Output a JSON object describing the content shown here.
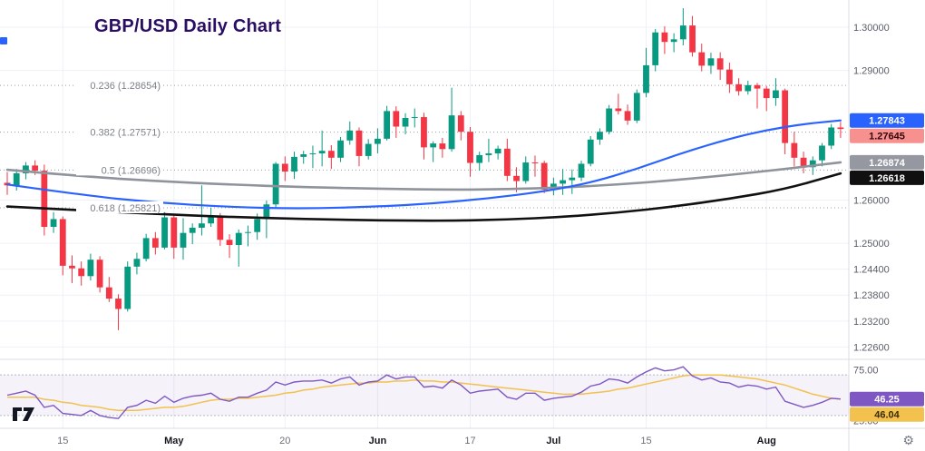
{
  "title": "GBP/USD Daily Chart",
  "colors": {
    "up_candle": "#089981",
    "down_candle": "#f23645",
    "ma_blue": "#2962ff",
    "ma_gray": "#8f939c",
    "ma_black": "#111111",
    "rsi_line": "#7e57c2",
    "rsi_ma_line": "#f2c14e",
    "fib_line": "#9b9ea6",
    "fib_text": "#7d8089",
    "grid": "#eef1f6",
    "separator": "#d9dce3",
    "band_fill": "rgba(126,87,194,0.08)",
    "title_text": "#2a0e63"
  },
  "price_axis": {
    "labels": [
      "1.30000",
      "1.29000",
      "1.26000",
      "1.25000",
      "1.24400",
      "1.23800",
      "1.23200",
      "1.22600"
    ],
    "badges": [
      {
        "text": "1.27843",
        "price": 1.27843,
        "bg": "#2962ff",
        "fg": "#ffffff",
        "name": "ma-blue-price-badge"
      },
      {
        "text": "1.27645",
        "price": 1.27645,
        "bg": "#f7918f",
        "fg": "#33060a",
        "name": "last-price-badge"
      },
      {
        "text": "1.26874",
        "price": 1.26874,
        "bg": "#9598a1",
        "fg": "#ffffff",
        "name": "ma-gray-price-badge"
      },
      {
        "text": "1.26618",
        "price": 1.26618,
        "bg": "#101010",
        "fg": "#ffffff",
        "name": "ma-black-price-badge"
      }
    ]
  },
  "rsi_axis": {
    "labels": [
      {
        "text": "75.00",
        "value": 75
      },
      {
        "text": "25.00",
        "value": 25
      }
    ],
    "badges": [
      {
        "text": "46.25",
        "value": 46.25,
        "bg": "#7e57c2",
        "fg": "#ffffff",
        "name": "rsi-value-badge"
      },
      {
        "text": "46.04",
        "value": 46.04,
        "bg": "#f2c14e",
        "fg": "#3a2b00",
        "name": "rsi-ma-value-badge"
      }
    ]
  },
  "time_axis": {
    "ticks": [
      {
        "label": "15",
        "index": 6,
        "month": false
      },
      {
        "label": "May",
        "index": 18,
        "month": true
      },
      {
        "label": "20",
        "index": 30,
        "month": false
      },
      {
        "label": "Jun",
        "index": 40,
        "month": true
      },
      {
        "label": "17",
        "index": 50,
        "month": false
      },
      {
        "label": "Jul",
        "index": 59,
        "month": true
      },
      {
        "label": "15",
        "index": 69,
        "month": false
      },
      {
        "label": "Aug",
        "index": 82,
        "month": true
      }
    ]
  },
  "chart_data": {
    "type": "candlestick",
    "pair": "GBP/USD",
    "interval": "Daily",
    "title": "GBP/USD Daily Chart",
    "price_range_visible": [
      1.226,
      1.3063
    ],
    "last_close": 1.27645,
    "fib_levels": [
      {
        "label": "0.236 (1.28654)",
        "price": 1.28654
      },
      {
        "label": "0.382 (1.27571)",
        "price": 1.27571
      },
      {
        "label": "0.5 (1.26696)",
        "price": 1.26696
      },
      {
        "label": "0.618 (1.25821)",
        "price": 1.25821
      }
    ],
    "candles": [
      [
        1.264,
        1.2665,
        1.2612,
        1.2634
      ],
      [
        1.2634,
        1.2672,
        1.2622,
        1.2662
      ],
      [
        1.2662,
        1.2688,
        1.2648,
        1.268
      ],
      [
        1.268,
        1.2692,
        1.2658,
        1.2668
      ],
      [
        1.2668,
        1.2682,
        1.2518,
        1.2538
      ],
      [
        1.2538,
        1.2572,
        1.2524,
        1.2556
      ],
      [
        1.2556,
        1.2562,
        1.2426,
        1.2448
      ],
      [
        1.2448,
        1.2472,
        1.2408,
        1.2442
      ],
      [
        1.2442,
        1.2458,
        1.2402,
        1.2424
      ],
      [
        1.2424,
        1.2476,
        1.2414,
        1.2462
      ],
      [
        1.2462,
        1.247,
        1.2386,
        1.2398
      ],
      [
        1.2398,
        1.2422,
        1.2364,
        1.2372
      ],
      [
        1.2372,
        1.2382,
        1.2299,
        1.2348
      ],
      [
        1.2348,
        1.2458,
        1.2342,
        1.2446
      ],
      [
        1.2446,
        1.2478,
        1.2428,
        1.2464
      ],
      [
        1.2464,
        1.2522,
        1.2458,
        1.2512
      ],
      [
        1.2512,
        1.2526,
        1.2474,
        1.249
      ],
      [
        1.249,
        1.2572,
        1.2486,
        1.256
      ],
      [
        1.256,
        1.2568,
        1.2464,
        1.249
      ],
      [
        1.249,
        1.2558,
        1.2462,
        1.2524
      ],
      [
        1.2524,
        1.2546,
        1.2498,
        1.2536
      ],
      [
        1.2536,
        1.2634,
        1.2518,
        1.2546
      ],
      [
        1.2546,
        1.2582,
        1.2538,
        1.2564
      ],
      [
        1.2564,
        1.257,
        1.2494,
        1.2508
      ],
      [
        1.2508,
        1.2521,
        1.2466,
        1.2496
      ],
      [
        1.2496,
        1.2532,
        1.2446,
        1.2524
      ],
      [
        1.2524,
        1.2541,
        1.2493,
        1.2526
      ],
      [
        1.2526,
        1.2569,
        1.2508,
        1.2556
      ],
      [
        1.2556,
        1.2599,
        1.2512,
        1.259
      ],
      [
        1.259,
        1.2688,
        1.2583,
        1.2684
      ],
      [
        1.2684,
        1.2701,
        1.2644,
        1.2666
      ],
      [
        1.2666,
        1.2712,
        1.2649,
        1.27
      ],
      [
        1.27,
        1.2714,
        1.2684,
        1.2706
      ],
      [
        1.2706,
        1.2726,
        1.2674,
        1.2708
      ],
      [
        1.2708,
        1.2761,
        1.2678,
        1.2714
      ],
      [
        1.2714,
        1.2727,
        1.2672,
        1.2698
      ],
      [
        1.2698,
        1.2746,
        1.2688,
        1.2738
      ],
      [
        1.2738,
        1.2782,
        1.2728,
        1.2761
      ],
      [
        1.2761,
        1.2768,
        1.2678,
        1.2702
      ],
      [
        1.2702,
        1.2741,
        1.2694,
        1.273
      ],
      [
        1.273,
        1.2766,
        1.2708,
        1.2742
      ],
      [
        1.2742,
        1.2818,
        1.2738,
        1.2806
      ],
      [
        1.2806,
        1.2817,
        1.2744,
        1.277
      ],
      [
        1.277,
        1.2801,
        1.2752,
        1.279
      ],
      [
        1.279,
        1.2812,
        1.2768,
        1.2792
      ],
      [
        1.2792,
        1.2802,
        1.2694,
        1.2722
      ],
      [
        1.2722,
        1.2736,
        1.2688,
        1.2731
      ],
      [
        1.2731,
        1.2744,
        1.2698,
        1.2718
      ],
      [
        1.2718,
        1.286,
        1.2712,
        1.2796
      ],
      [
        1.2796,
        1.2806,
        1.2738,
        1.2758
      ],
      [
        1.2758,
        1.2769,
        1.2654,
        1.2686
      ],
      [
        1.2686,
        1.2712,
        1.2668,
        1.2704
      ],
      [
        1.2704,
        1.2742,
        1.2688,
        1.2708
      ],
      [
        1.2708,
        1.2726,
        1.2694,
        1.2719
      ],
      [
        1.2719,
        1.2742,
        1.2644,
        1.2656
      ],
      [
        1.2656,
        1.2676,
        1.2618,
        1.2644
      ],
      [
        1.2644,
        1.2701,
        1.2638,
        1.2687
      ],
      [
        1.2687,
        1.2703,
        1.2654,
        1.2686
      ],
      [
        1.2686,
        1.2691,
        1.2616,
        1.2624
      ],
      [
        1.2624,
        1.2652,
        1.2611,
        1.2638
      ],
      [
        1.2638,
        1.2672,
        1.2612,
        1.2646
      ],
      [
        1.2646,
        1.2671,
        1.2614,
        1.2652
      ],
      [
        1.2652,
        1.2691,
        1.2644,
        1.2684
      ],
      [
        1.2684,
        1.2748,
        1.2678,
        1.274
      ],
      [
        1.274,
        1.2766,
        1.2728,
        1.2758
      ],
      [
        1.2758,
        1.282,
        1.2752,
        1.2812
      ],
      [
        1.2812,
        1.2846,
        1.2798,
        1.2806
      ],
      [
        1.2806,
        1.2821,
        1.2774,
        1.2784
      ],
      [
        1.2784,
        1.2856,
        1.2778,
        1.2848
      ],
      [
        1.2848,
        1.2952,
        1.2838,
        1.2912
      ],
      [
        1.2912,
        1.2996,
        1.2898,
        1.2988
      ],
      [
        1.2988,
        1.3002,
        1.2938,
        1.2966
      ],
      [
        1.2966,
        1.2986,
        1.2942,
        1.2972
      ],
      [
        1.2972,
        1.3044,
        1.2958,
        1.3004
      ],
      [
        1.3004,
        1.3026,
        1.2932,
        1.2942
      ],
      [
        1.2942,
        1.2962,
        1.2898,
        1.2911
      ],
      [
        1.2911,
        1.2941,
        1.2892,
        1.2928
      ],
      [
        1.2928,
        1.2942,
        1.2878,
        1.2902
      ],
      [
        1.2902,
        1.2918,
        1.2848,
        1.2868
      ],
      [
        1.2868,
        1.2882,
        1.2842,
        1.2852
      ],
      [
        1.2852,
        1.2876,
        1.2844,
        1.2866
      ],
      [
        1.2866,
        1.2871,
        1.2812,
        1.2858
      ],
      [
        1.2858,
        1.2864,
        1.2806,
        1.2836
      ],
      [
        1.2836,
        1.2882,
        1.2818,
        1.2854
      ],
      [
        1.2854,
        1.2858,
        1.2706,
        1.2732
      ],
      [
        1.2732,
        1.2758,
        1.2678,
        1.2698
      ],
      [
        1.2698,
        1.2712,
        1.2662,
        1.2676
      ],
      [
        1.2676,
        1.2701,
        1.2658,
        1.2692
      ],
      [
        1.2692,
        1.2732,
        1.2678,
        1.2726
      ],
      [
        1.2726,
        1.2776,
        1.2718,
        1.2768
      ],
      [
        1.2768,
        1.2781,
        1.2744,
        1.27645
      ]
    ],
    "moving_averages": [
      {
        "name": "black-ma",
        "color": "#111111",
        "width": 2.6,
        "points": [
          [
            0,
            1.2585
          ],
          [
            8,
            1.2576
          ],
          [
            16,
            1.2568
          ],
          [
            24,
            1.2561
          ],
          [
            32,
            1.2556
          ],
          [
            40,
            1.2553
          ],
          [
            48,
            1.2552
          ],
          [
            54,
            1.2555
          ],
          [
            60,
            1.2561
          ],
          [
            66,
            1.2571
          ],
          [
            72,
            1.2585
          ],
          [
            78,
            1.2603
          ],
          [
            84,
            1.2625
          ],
          [
            90,
            1.26618
          ]
        ],
        "end_value": 1.26618
      },
      {
        "name": "gray-ma",
        "color": "#8f939c",
        "width": 2.6,
        "points": [
          [
            0,
            1.267
          ],
          [
            8,
            1.2655
          ],
          [
            16,
            1.2644
          ],
          [
            24,
            1.2636
          ],
          [
            32,
            1.263
          ],
          [
            40,
            1.2626
          ],
          [
            48,
            1.2624
          ],
          [
            54,
            1.2625
          ],
          [
            60,
            1.2629
          ],
          [
            66,
            1.2636
          ],
          [
            72,
            1.2646
          ],
          [
            78,
            1.2658
          ],
          [
            84,
            1.2672
          ],
          [
            90,
            1.26874
          ]
        ],
        "end_value": 1.26874
      },
      {
        "name": "blue-ma",
        "color": "#2962ff",
        "width": 2.2,
        "points": [
          [
            0,
            1.2636
          ],
          [
            8,
            1.2612
          ],
          [
            16,
            1.2594
          ],
          [
            24,
            1.2584
          ],
          [
            32,
            1.258
          ],
          [
            40,
            1.2585
          ],
          [
            46,
            1.2592
          ],
          [
            52,
            1.2604
          ],
          [
            58,
            1.262
          ],
          [
            63,
            1.264
          ],
          [
            68,
            1.2672
          ],
          [
            73,
            1.271
          ],
          [
            78,
            1.2742
          ],
          [
            82,
            1.2762
          ],
          [
            86,
            1.2776
          ],
          [
            90,
            1.27843
          ]
        ],
        "end_value": 1.27843
      }
    ],
    "rsi": {
      "upper_band": 70,
      "lower_band": 30,
      "last_value": 46.25,
      "last_ma_value": 46.04,
      "values": [
        50,
        52,
        54,
        50,
        38,
        40,
        32,
        31,
        30,
        35,
        30,
        28,
        27,
        38,
        40,
        45,
        42,
        49,
        43,
        47,
        49,
        50,
        52,
        46,
        44,
        48,
        48,
        52,
        55,
        63,
        60,
        63,
        64,
        64,
        65,
        62,
        66,
        68,
        60,
        63,
        64,
        70,
        66,
        68,
        68,
        58,
        59,
        57,
        65,
        60,
        52,
        54,
        55,
        56,
        48,
        46,
        52,
        52,
        45,
        47,
        48,
        49,
        53,
        59,
        61,
        66,
        65,
        62,
        68,
        73,
        77,
        74,
        75,
        78,
        69,
        65,
        67,
        63,
        62,
        58,
        60,
        59,
        56,
        58,
        44,
        41,
        38,
        40,
        43,
        47,
        46.25
      ],
      "ma_values": [
        48,
        48,
        48,
        48,
        46,
        45,
        43,
        42,
        40,
        39,
        38,
        36,
        35,
        35,
        35,
        36,
        37,
        38,
        38,
        39,
        41,
        43,
        45,
        46,
        46,
        47,
        47,
        48,
        49,
        50,
        52,
        53,
        55,
        56,
        58,
        59,
        60,
        61,
        62,
        62,
        63,
        63,
        64,
        64,
        65,
        64,
        64,
        63,
        63,
        62,
        61,
        60,
        59,
        58,
        57,
        56,
        55,
        54,
        53,
        52,
        51,
        51,
        51,
        52,
        53,
        54,
        56,
        57,
        59,
        61,
        63,
        65,
        67,
        69,
        70,
        70,
        70,
        70,
        69,
        68,
        67,
        66,
        64,
        62,
        60,
        57,
        54,
        51,
        49,
        47,
        46.04
      ]
    }
  }
}
